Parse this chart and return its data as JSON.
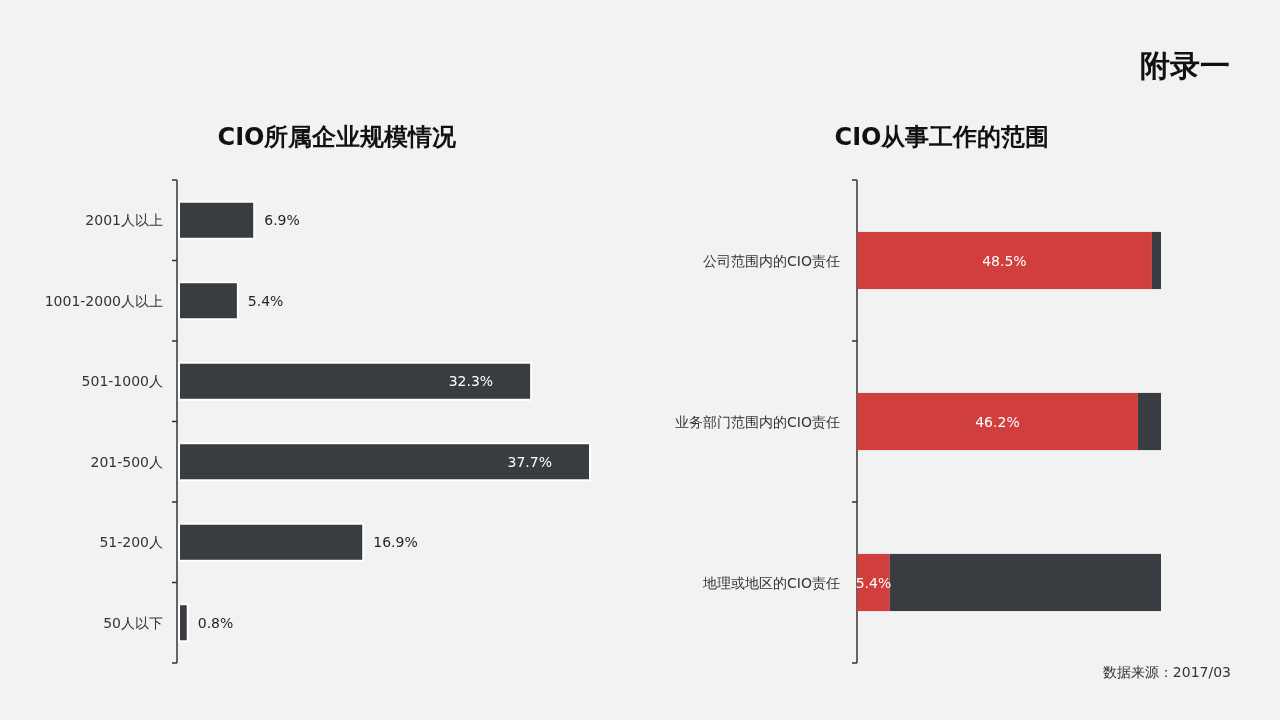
{
  "chart_data": [
    {
      "type": "bar",
      "orientation": "horizontal",
      "title": "CIO所属企业规模情况",
      "categories": [
        "2001人以上",
        "1001-2000人以上",
        "501-1000人",
        "201-500人",
        "51-200人",
        "50人以下"
      ],
      "values": [
        6.9,
        5.4,
        32.3,
        37.7,
        16.9,
        0.8
      ],
      "value_labels": [
        "6.9%",
        "5.4%",
        "32.3%",
        "37.7%",
        "16.9%",
        "0.8%"
      ],
      "color": "#393c40"
    },
    {
      "type": "bar",
      "orientation": "horizontal",
      "stacked": true,
      "title": "CIO从事工作的范围",
      "categories": [
        "公司范围内的CIO责任",
        "业务部门范围内的CIO责任",
        "地理或地区的CIO责任"
      ],
      "series": [
        {
          "color": "#d03e3e",
          "values": [
            48.5,
            46.2,
            5.4
          ],
          "value_labels": [
            "48.5%",
            "46.2%",
            "5.4%"
          ]
        },
        {
          "color": "#393c40",
          "values": [
            1.5,
            3.8,
            44.6
          ]
        }
      ],
      "annotations": [
        "附录一",
        "数据来源：2017/03"
      ]
    }
  ]
}
